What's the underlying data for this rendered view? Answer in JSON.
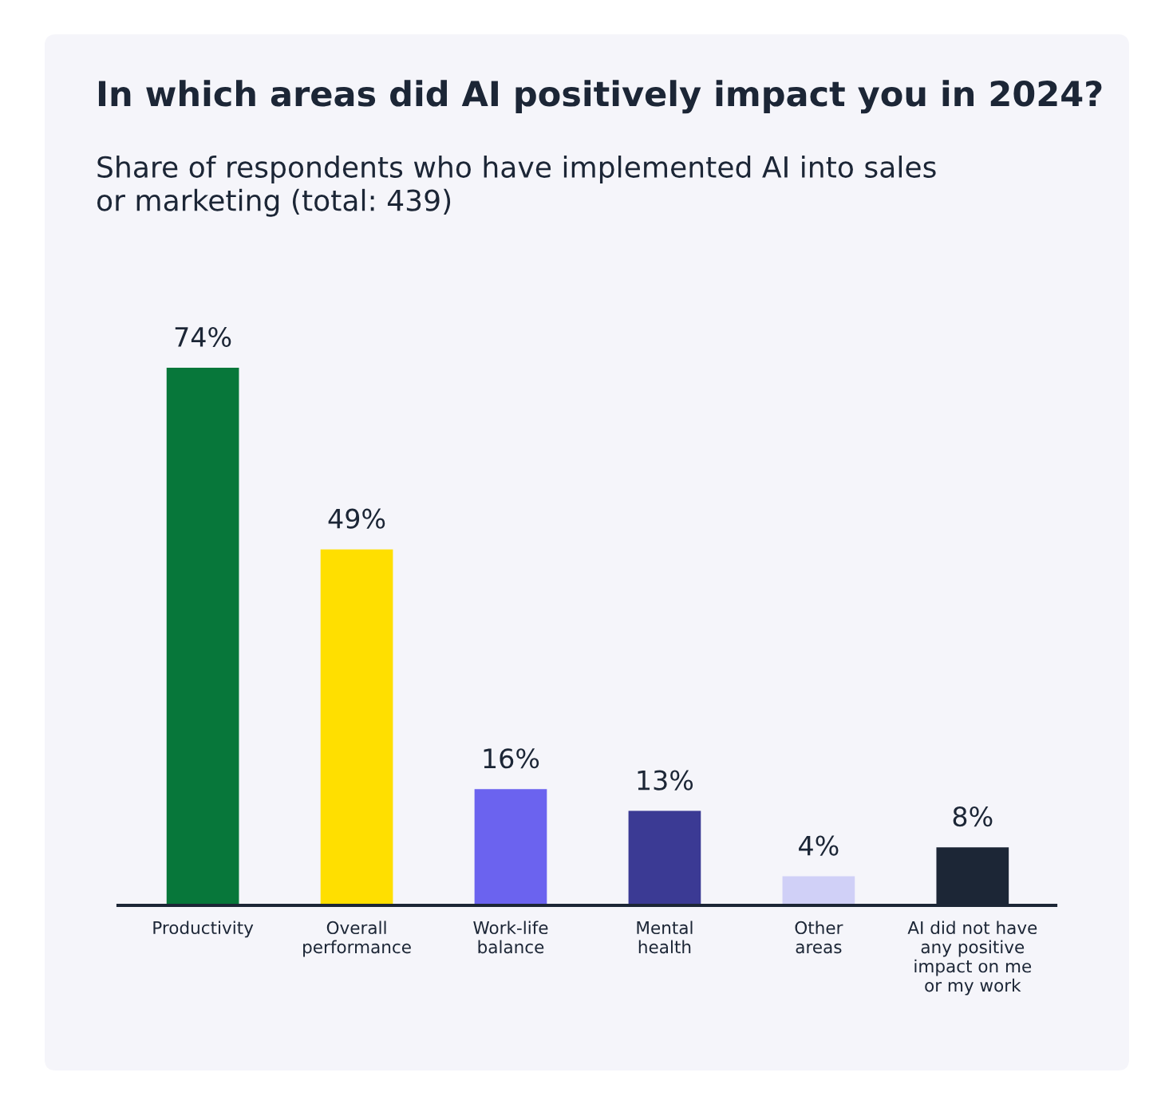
{
  "chart_data": {
    "type": "bar",
    "title": "In which areas did AI positively impact you in 2024?",
    "subtitle": "Share of respondents who have implemented AI into sales\nor marketing (total: 439)",
    "categories": [
      "Productivity",
      "Overall\nperformance",
      "Work-life\nbalance",
      "Mental\nhealth",
      "Other\nareas",
      "AI did not have\nany positive\nimpact on me\nor my work"
    ],
    "values": [
      74,
      49,
      16,
      13,
      4,
      8
    ],
    "value_labels": [
      "74%",
      "49%",
      "16%",
      "13%",
      "4%",
      "8%"
    ],
    "colors": [
      "#07773a",
      "#ffdf00",
      "#6b63ef",
      "#3b3a94",
      "#d0d0f7",
      "#1c2636"
    ],
    "grid": false,
    "legend": false
  }
}
